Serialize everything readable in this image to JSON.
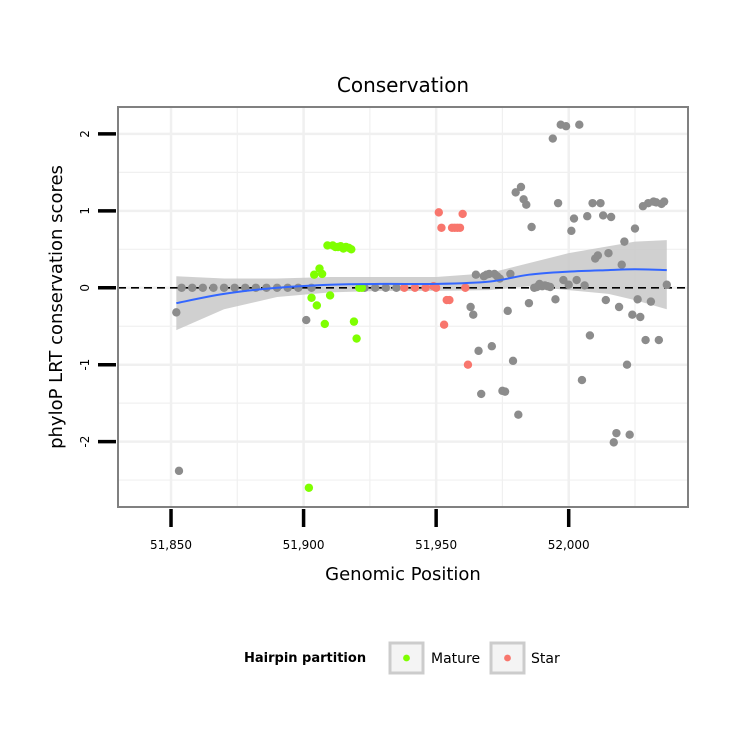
{
  "chart_data": {
    "type": "scatter",
    "title": "Conservation",
    "xlabel": "Genomic Position",
    "ylabel": "phyloP LRT conservation scores",
    "xlim": [
      51830,
      52045
    ],
    "ylim": [
      -2.85,
      2.35
    ],
    "x_ticks": [
      51850,
      51900,
      51950,
      52000
    ],
    "x_tick_labels": [
      "51,850",
      "51,900",
      "51,950",
      "52,000"
    ],
    "y_ticks": [
      -2,
      -1,
      0,
      1,
      2
    ],
    "y_tick_labels": [
      "-2",
      "-1",
      "0",
      "1",
      "2"
    ],
    "grid": true,
    "reference_line": {
      "y": 0,
      "style": "dashed"
    },
    "legend": {
      "title": "Hairpin partition",
      "position": "bottom",
      "entries": [
        {
          "label": "Mature",
          "color": "#7FFF00"
        },
        {
          "label": "Star",
          "color": "#F8766D"
        }
      ]
    },
    "colors": {
      "Mature": "#7FFF00",
      "Star": "#F8766D",
      "Other": "#8C8C8C",
      "smooth": "#3366FF",
      "band": "#C8C8C8"
    },
    "series": [
      {
        "name": "Other",
        "points": [
          [
            51852,
            -0.32
          ],
          [
            51853,
            -2.38
          ],
          [
            51854,
            0.0
          ],
          [
            51858,
            0.0
          ],
          [
            51862,
            0.0
          ],
          [
            51866,
            0.0
          ],
          [
            51870,
            0.0
          ],
          [
            51874,
            0.0
          ],
          [
            51878,
            0.0
          ],
          [
            51882,
            0.0
          ],
          [
            51886,
            0.0
          ],
          [
            51890,
            0.0
          ],
          [
            51894,
            0.0
          ],
          [
            51898,
            0.0
          ],
          [
            51901,
            -0.42
          ],
          [
            51903,
            0.0
          ],
          [
            51923,
            0.0
          ],
          [
            51927,
            0.0
          ],
          [
            51931,
            0.0
          ],
          [
            51935,
            0.0
          ],
          [
            51963,
            -0.25
          ],
          [
            51964,
            -0.35
          ],
          [
            51965,
            0.17
          ],
          [
            51966,
            -0.82
          ],
          [
            51967,
            -1.38
          ],
          [
            51968,
            0.15
          ],
          [
            51969,
            0.17
          ],
          [
            51970,
            0.18
          ],
          [
            51971,
            -0.76
          ],
          [
            51972,
            0.18
          ],
          [
            51973,
            0.15
          ],
          [
            51974,
            0.12
          ],
          [
            51975,
            -1.34
          ],
          [
            51976,
            -1.35
          ],
          [
            51977,
            -0.3
          ],
          [
            51978,
            0.18
          ],
          [
            51979,
            -0.95
          ],
          [
            51980,
            1.24
          ],
          [
            51981,
            -1.65
          ],
          [
            51982,
            1.31
          ],
          [
            51983,
            1.15
          ],
          [
            51984,
            1.08
          ],
          [
            51985,
            -0.2
          ],
          [
            51986,
            0.79
          ],
          [
            51987,
            0.0
          ],
          [
            51988,
            0.01
          ],
          [
            51989,
            0.05
          ],
          [
            51990,
            0.02
          ],
          [
            51991,
            0.03
          ],
          [
            51992,
            0.02
          ],
          [
            51993,
            0.01
          ],
          [
            51994,
            1.94
          ],
          [
            51995,
            -0.15
          ],
          [
            51996,
            1.1
          ],
          [
            51997,
            2.12
          ],
          [
            51998,
            0.1
          ],
          [
            51999,
            2.1
          ],
          [
            52000,
            0.04
          ],
          [
            52001,
            0.74
          ],
          [
            52002,
            0.9
          ],
          [
            52003,
            0.1
          ],
          [
            52004,
            2.12
          ],
          [
            52005,
            -1.2
          ],
          [
            52006,
            0.03
          ],
          [
            52007,
            0.93
          ],
          [
            52008,
            -0.62
          ],
          [
            52009,
            1.1
          ],
          [
            52010,
            0.38
          ],
          [
            52011,
            0.42
          ],
          [
            52012,
            1.1
          ],
          [
            52013,
            0.94
          ],
          [
            52014,
            -0.16
          ],
          [
            52015,
            0.45
          ],
          [
            52016,
            0.92
          ],
          [
            52017,
            -2.01
          ],
          [
            52018,
            -1.89
          ],
          [
            52019,
            -0.25
          ],
          [
            52020,
            0.3
          ],
          [
            52021,
            0.6
          ],
          [
            52022,
            -1.0
          ],
          [
            52023,
            -1.91
          ],
          [
            52024,
            -0.35
          ],
          [
            52025,
            0.77
          ],
          [
            52026,
            -0.15
          ],
          [
            52027,
            -0.38
          ],
          [
            52028,
            1.06
          ],
          [
            52029,
            -0.68
          ],
          [
            52030,
            1.1
          ],
          [
            52031,
            -0.18
          ],
          [
            52032,
            1.12
          ],
          [
            52033,
            1.11
          ],
          [
            52034,
            -0.68
          ],
          [
            52035,
            1.09
          ],
          [
            52036,
            1.12
          ],
          [
            52037,
            0.04
          ]
        ]
      },
      {
        "name": "Mature",
        "points": [
          [
            51902,
            -2.6
          ],
          [
            51903,
            -0.13
          ],
          [
            51904,
            0.17
          ],
          [
            51905,
            -0.23
          ],
          [
            51906,
            0.25
          ],
          [
            51907,
            0.18
          ],
          [
            51908,
            -0.47
          ],
          [
            51909,
            0.55
          ],
          [
            51910,
            -0.1
          ],
          [
            51911,
            0.55
          ],
          [
            51912,
            0.53
          ],
          [
            51913,
            0.53
          ],
          [
            51914,
            0.54
          ],
          [
            51915,
            0.51
          ],
          [
            51916,
            0.53
          ],
          [
            51917,
            0.52
          ],
          [
            51918,
            0.5
          ],
          [
            51919,
            -0.44
          ],
          [
            51920,
            -0.66
          ],
          [
            51921,
            0.0
          ],
          [
            51922,
            0.0
          ]
        ]
      },
      {
        "name": "Star",
        "points": [
          [
            51938,
            0.0
          ],
          [
            51942,
            0.0
          ],
          [
            51946,
            0.0
          ],
          [
            51949,
            0.02
          ],
          [
            51950,
            0.0
          ],
          [
            51951,
            0.98
          ],
          [
            51952,
            0.78
          ],
          [
            51953,
            -0.48
          ],
          [
            51954,
            -0.16
          ],
          [
            51955,
            -0.16
          ],
          [
            51956,
            0.78
          ],
          [
            51957,
            0.78
          ],
          [
            51958,
            0.78
          ],
          [
            51959,
            0.78
          ],
          [
            51960,
            0.96
          ],
          [
            51961,
            0.0
          ],
          [
            51962,
            -1.0
          ]
        ]
      }
    ],
    "smooth": {
      "x": [
        51852,
        51870,
        51890,
        51910,
        51930,
        51950,
        51970,
        51985,
        52000,
        52015,
        52025,
        52037
      ],
      "y": [
        -0.2,
        -0.08,
        0.0,
        0.04,
        0.05,
        0.05,
        0.08,
        0.17,
        0.21,
        0.23,
        0.24,
        0.23
      ],
      "lower": [
        -0.55,
        -0.28,
        -0.12,
        -0.06,
        -0.04,
        -0.04,
        -0.03,
        0.02,
        -0.03,
        -0.08,
        -0.16,
        -0.28
      ],
      "upper": [
        0.15,
        0.12,
        0.12,
        0.14,
        0.14,
        0.14,
        0.19,
        0.32,
        0.45,
        0.54,
        0.6,
        0.62
      ]
    }
  }
}
